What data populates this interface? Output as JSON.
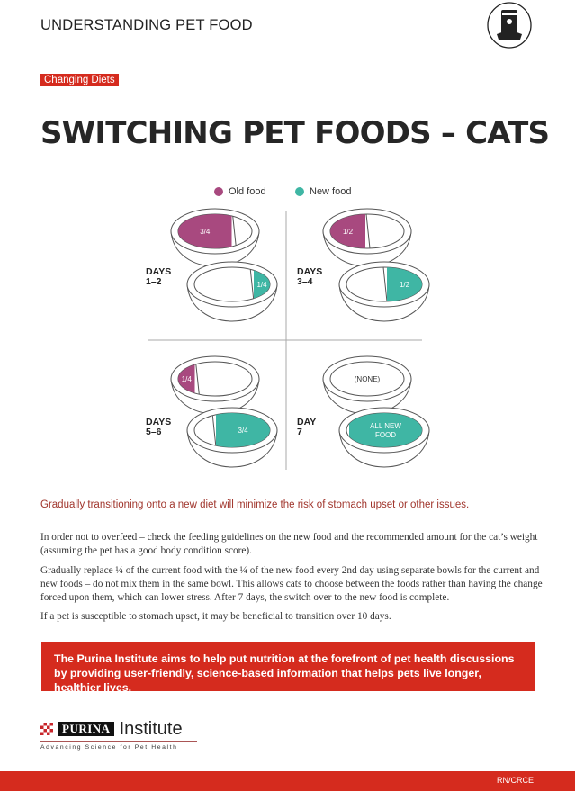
{
  "header": {
    "title": "UNDERSTANDING PET FOOD",
    "icon": "pet-food-bag-icon"
  },
  "tag": "Changing Diets",
  "title": "SWITCHING PET FOODS – CATS",
  "colors": {
    "old_food": "#a8497f",
    "new_food": "#3fb6a4",
    "accent": "#d52b1e"
  },
  "legend": [
    {
      "label": "Old food",
      "key": "old"
    },
    {
      "label": "New food",
      "key": "new"
    }
  ],
  "stages": [
    {
      "day_label": "DAYS\n1–2",
      "old_fraction": 0.75,
      "old_label": "3/4",
      "new_fraction": 0.25,
      "new_label": "1/4"
    },
    {
      "day_label": "DAYS\n3–4",
      "old_fraction": 0.5,
      "old_label": "1/2",
      "new_fraction": 0.5,
      "new_label": "1/2"
    },
    {
      "day_label": "DAYS\n5–6",
      "old_fraction": 0.25,
      "old_label": "1/4",
      "new_fraction": 0.75,
      "new_label": "3/4"
    },
    {
      "day_label": "DAY\n7",
      "old_fraction": 0,
      "old_label": "(NONE)",
      "new_fraction": 1,
      "new_label": "ALL NEW\nFOOD"
    }
  ],
  "lead": "Gradually transitioning onto a new diet will minimize the risk of stomach upset or other issues.",
  "paragraphs": [
    "In order not to overfeed – check the feeding guidelines on the new food and the recommended amount for the cat’s weight (assuming the pet has a good body condition score).",
    "Gradually replace ¼ of the current food with the ¼ of the new food every 2nd day using separate bowls for the current and new foods – do not mix them in the same bowl. This allows cats to choose between the foods rather than having the change forced upon them, which can lower stress. After 7 days, the switch over to the new food is complete.",
    "If a pet is susceptible to stomach upset, it may be beneficial to transition over 10 days."
  ],
  "banner": "The Purina Institute aims to help put nutrition at the forefront of pet health discussions by providing user-friendly, science-based information that helps pets live longer, healthier lives.",
  "logo": {
    "brand": "PURINA",
    "name": "Institute",
    "tagline": "Advancing Science for Pet Health"
  },
  "footer": {
    "code": "RN/CRCE"
  }
}
